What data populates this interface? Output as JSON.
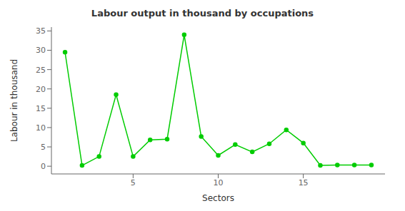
{
  "chart_data": {
    "type": "line",
    "title": "Labour output in thousand by occupations",
    "xlabel": "Sectors",
    "ylabel": "Labour in thousand",
    "x": [
      1,
      2,
      3,
      4,
      5,
      6,
      7,
      8,
      9,
      10,
      11,
      12,
      13,
      14,
      15,
      16,
      17,
      18,
      19
    ],
    "values": [
      29.5,
      0.2,
      2.5,
      18.5,
      2.5,
      6.8,
      7.0,
      34.0,
      7.7,
      2.8,
      5.6,
      3.7,
      5.8,
      9.4,
      6.0,
      0.2,
      0.3,
      0.3,
      0.3
    ],
    "color": "#00cc00",
    "marker": "circle",
    "xlim": [
      0.2,
      19.8
    ],
    "ylim": [
      -2,
      36
    ],
    "xticks": [
      5,
      10,
      15
    ],
    "yticks": [
      0,
      5,
      10,
      15,
      20,
      25,
      30,
      35
    ],
    "grid": false
  }
}
